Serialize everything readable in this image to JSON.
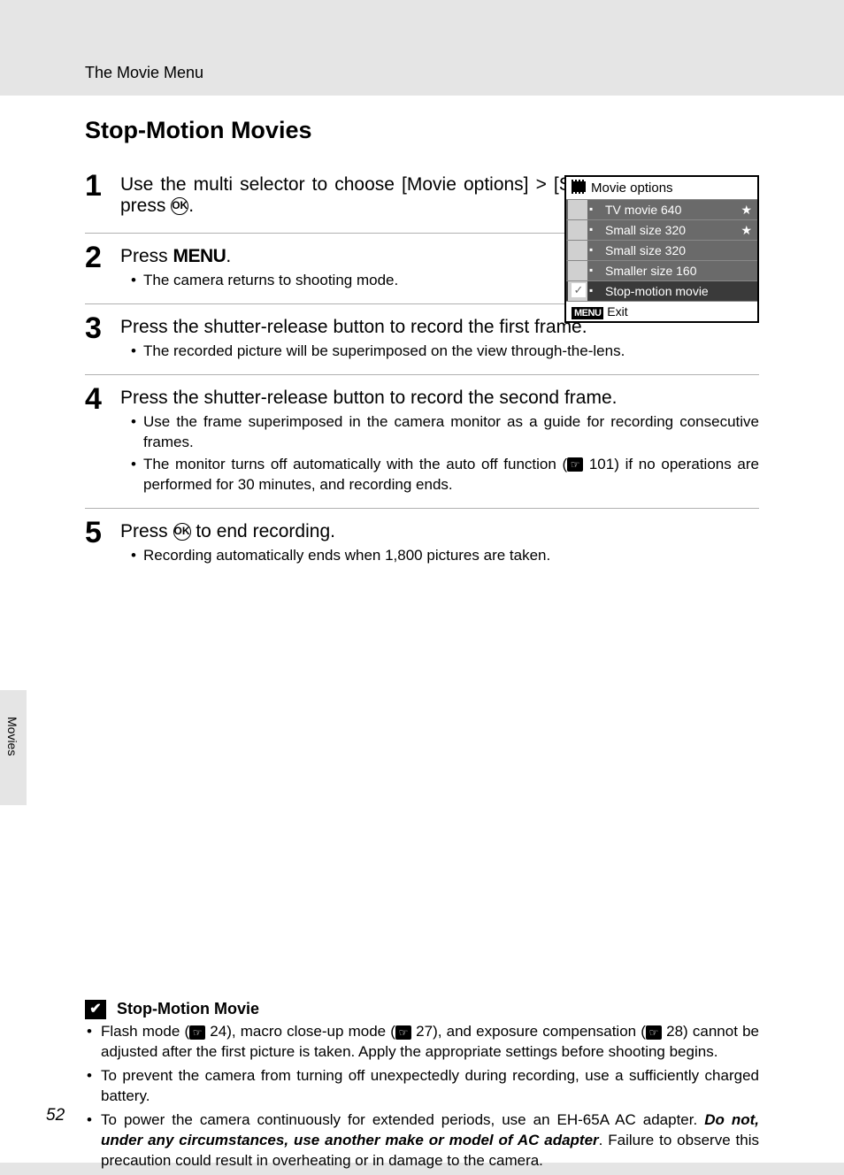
{
  "header": {
    "section": "The Movie Menu"
  },
  "title": "Stop-Motion Movies",
  "page_number": "52",
  "side_tab": "Movies",
  "ok_glyph": "OK",
  "menu_glyph": "MENU",
  "ref_glyph": "☞",
  "options_panel": {
    "title": "Movie options",
    "rows": [
      {
        "label": "TV movie 640",
        "star": true
      },
      {
        "label": "Small size 320",
        "star": true
      },
      {
        "label": "Small size 320",
        "star": false
      },
      {
        "label": "Smaller size 160",
        "star": false
      },
      {
        "label": "Stop-motion movie",
        "star": false,
        "selected": true,
        "check": true
      }
    ],
    "exit": "Exit"
  },
  "steps": {
    "s1": {
      "num": "1",
      "text_a": "Use the multi selector to choose [Movie options] > [Stop-motion movie] and press ",
      "text_b": "."
    },
    "s2": {
      "num": "2",
      "head_a": "Press ",
      "head_b": ".",
      "b1": "The camera returns to shooting mode."
    },
    "s3": {
      "num": "3",
      "head": "Press the shutter-release button to record the first frame.",
      "b1": "The recorded picture will be superimposed on the view through-the-lens."
    },
    "s4": {
      "num": "4",
      "head": "Press the shutter-release button to record the second frame.",
      "b1": "Use the frame superimposed in the camera monitor as a guide for recording consecutive frames.",
      "b2_a": "The monitor turns off automatically with the auto off function (",
      "b2_ref": " 101",
      "b2_b": ") if no operations are performed for 30 minutes, and recording ends."
    },
    "s5": {
      "num": "5",
      "head_a": "Press ",
      "head_b": " to end recording.",
      "b1": "Recording automatically ends when 1,800 pictures are taken."
    }
  },
  "note": {
    "title": "Stop-Motion Movie",
    "b1_a": "Flash mode (",
    "b1_r1": " 24",
    "b1_b": "), macro close-up mode (",
    "b1_r2": " 27",
    "b1_c": "), and exposure compensation (",
    "b1_r3": " 28",
    "b1_d": ") cannot be adjusted after the first picture is taken. Apply the appropriate settings before shooting begins.",
    "b2": "To prevent the camera from turning off unexpectedly during recording, use a sufficiently charged battery.",
    "b3_a": "To power the camera continuously for extended periods, use an EH-65A AC adapter. ",
    "b3_bold": "Do not, under any circumstances, use another make or model of AC adapter",
    "b3_b": ". Failure to observe this precaution could result in overheating or in damage to the camera."
  },
  "colors": {
    "page_bg": "#ffffff",
    "outer_bg": "#e5e5e5",
    "panel_row": "#6a6a6a",
    "panel_selected": "#3a3a3a",
    "divider": "#b0b0b0"
  }
}
